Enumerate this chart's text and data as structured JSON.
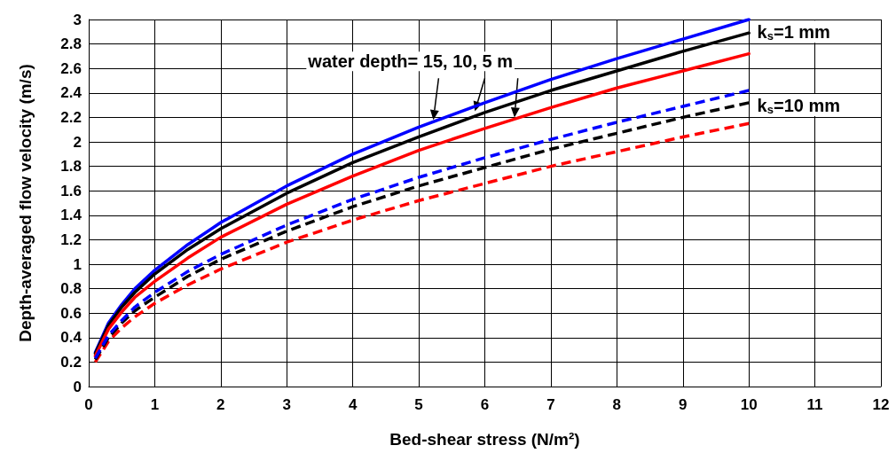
{
  "chart_data": {
    "type": "line",
    "xlabel": "Bed-shear stress (N/m²)",
    "ylabel": "Depth-averaged flow velocity (m/s)",
    "x": [
      0.1,
      0.3,
      0.5,
      0.7,
      1,
      1.5,
      2,
      3,
      4,
      5,
      6,
      7,
      8,
      9,
      10
    ],
    "series": [
      {
        "color": "#0000ff",
        "line_style": "solid",
        "values": [
          0.28,
          0.52,
          0.67,
          0.8,
          0.95,
          1.16,
          1.34,
          1.64,
          1.9,
          2.12,
          2.32,
          2.51,
          2.68,
          2.84,
          3.0
        ]
      },
      {
        "color": "#000000",
        "line_style": "solid",
        "values": [
          0.27,
          0.5,
          0.65,
          0.77,
          0.92,
          1.12,
          1.29,
          1.58,
          1.83,
          2.04,
          2.24,
          2.42,
          2.58,
          2.74,
          2.89
        ]
      },
      {
        "color": "#ff0000",
        "line_style": "solid",
        "values": [
          0.25,
          0.47,
          0.61,
          0.73,
          0.86,
          1.05,
          1.22,
          1.49,
          1.72,
          1.93,
          2.11,
          2.28,
          2.44,
          2.58,
          2.72
        ]
      },
      {
        "color": "#0000ff",
        "line_style": "dashed",
        "values": [
          0.23,
          0.42,
          0.54,
          0.65,
          0.77,
          0.94,
          1.08,
          1.32,
          1.53,
          1.71,
          1.87,
          2.02,
          2.16,
          2.29,
          2.42
        ]
      },
      {
        "color": "#000000",
        "line_style": "dashed",
        "values": [
          0.22,
          0.4,
          0.52,
          0.62,
          0.73,
          0.9,
          1.04,
          1.27,
          1.47,
          1.64,
          1.79,
          1.94,
          2.07,
          2.2,
          2.32
        ]
      },
      {
        "color": "#ff0000",
        "line_style": "dashed",
        "values": [
          0.2,
          0.37,
          0.48,
          0.57,
          0.68,
          0.83,
          0.96,
          1.18,
          1.36,
          1.52,
          1.66,
          1.8,
          1.92,
          2.04,
          2.15
        ]
      }
    ],
    "annotations": [
      {
        "text": "water depth= 15, 10, 5 m",
        "x": 5.85,
        "y": 2.23
      },
      "k$_{s}$=1 mm",
      "k$_{s}$=10 mm"
    ],
    "xlim": [
      0,
      12
    ],
    "xticks": [
      0,
      1,
      2,
      3,
      4,
      5,
      6,
      7,
      8,
      9,
      10,
      11,
      12
    ],
    "ylim": [
      0,
      3
    ],
    "yticks": [
      0,
      0.2,
      0.4,
      0.6,
      0.8,
      1,
      1.2,
      1.4,
      1.6,
      1.8,
      2,
      2.2,
      2.4,
      2.6,
      2.8,
      3
    ],
    "grid": true,
    "marker": "none"
  }
}
